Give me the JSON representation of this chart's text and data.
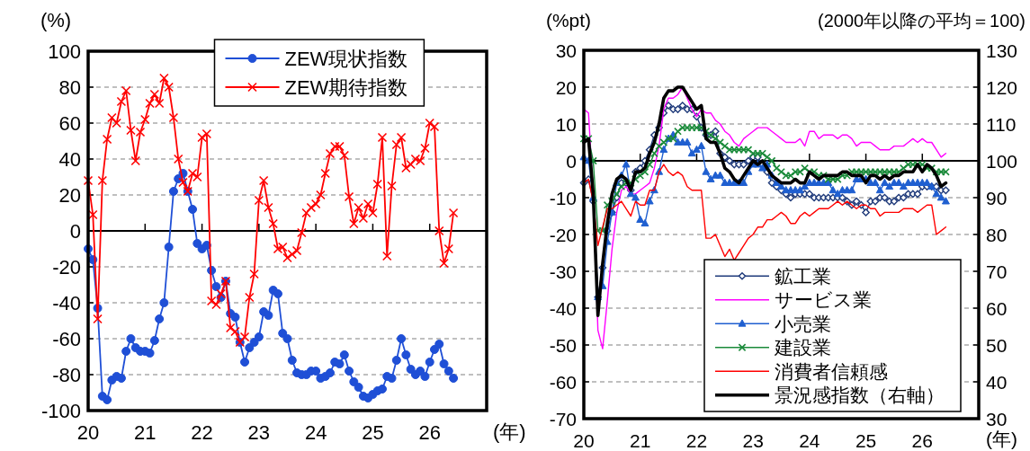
{
  "chart_data": [
    {
      "type": "line",
      "ylabel": "(%)",
      "xlabel": "(年)",
      "x": [
        "2020-01",
        "2020-02",
        "2020-03",
        "2020-04",
        "2020-05",
        "2020-06",
        "2020-07",
        "2020-08",
        "2020-09",
        "2020-10",
        "2020-11",
        "2020-12",
        "2021-01",
        "2021-02",
        "2021-03",
        "2021-04",
        "2021-05",
        "2021-06",
        "2021-07",
        "2021-08",
        "2021-09",
        "2021-10",
        "2021-11",
        "2021-12",
        "2022-01",
        "2022-02",
        "2022-03",
        "2022-04",
        "2022-05",
        "2022-06",
        "2022-07",
        "2022-08",
        "2022-09",
        "2022-10",
        "2022-11",
        "2022-12",
        "2023-01",
        "2023-02",
        "2023-03",
        "2023-04",
        "2023-05",
        "2023-06",
        "2023-07",
        "2023-08",
        "2023-09",
        "2023-10",
        "2023-11",
        "2023-12",
        "2024-01",
        "2024-02",
        "2024-03",
        "2024-04",
        "2024-05",
        "2024-06",
        "2024-07",
        "2024-08",
        "2024-09",
        "2024-10",
        "2024-11",
        "2024-12",
        "2025-01",
        "2025-02",
        "2025-03",
        "2025-04",
        "2025-05",
        "2025-06",
        "2025-07",
        "2025-08",
        "2025-09",
        "2025-10",
        "2025-11",
        "2025-12",
        "2026-01",
        "2026-02",
        "2026-03",
        "2026-04",
        "2026-05",
        "2026-06"
      ],
      "xlim": [
        "2020-01",
        "2027-01"
      ],
      "xticks": [
        {
          "value": "2020-01",
          "label": "20"
        },
        {
          "value": "2021-01",
          "label": "21"
        },
        {
          "value": "2022-01",
          "label": "22"
        },
        {
          "value": "2023-01",
          "label": "23"
        },
        {
          "value": "2024-01",
          "label": "24"
        },
        {
          "value": "2025-01",
          "label": "25"
        },
        {
          "value": "2026-01",
          "label": "26"
        }
      ],
      "ylim": [
        -100,
        100
      ],
      "yticks": [
        -100,
        -80,
        -60,
        -40,
        -20,
        0,
        20,
        40,
        60,
        80,
        100
      ],
      "grid": "y",
      "legend": "top",
      "ref_lines": [
        {
          "axis": "y",
          "value": 0,
          "color": "#000000"
        }
      ],
      "series": [
        {
          "name": "ZEW現状指数",
          "color": "#1f4fd6",
          "marker": "circle",
          "values": [
            -10,
            -16,
            -43,
            -92,
            -94,
            -83,
            -81,
            -82,
            -67,
            -60,
            -65,
            -67,
            -67,
            -68,
            -61,
            -49,
            -40,
            -9,
            22,
            29,
            32,
            22,
            12,
            -7,
            -10,
            -8,
            -22,
            -31,
            -37,
            -28,
            -46,
            -48,
            -62,
            -73,
            -65,
            -62,
            -59,
            -45,
            -47,
            -33,
            -35,
            -57,
            -60,
            -72,
            -79,
            -80,
            -80,
            -78,
            -78,
            -82,
            -81,
            -79,
            -73,
            -74,
            -69,
            -78,
            -84,
            -87,
            -92,
            -93,
            -91,
            -89,
            -88,
            -81,
            -82,
            -72,
            -60,
            -69,
            -77,
            -80,
            -78,
            -81,
            -73,
            -66,
            -63,
            -74,
            -78,
            -82
          ]
        },
        {
          "name": "ZEW期待指数",
          "color": "#ff0000",
          "marker": "cross",
          "values": [
            28,
            9,
            -49,
            28,
            51,
            63,
            60,
            72,
            78,
            56,
            39,
            55,
            62,
            71,
            76,
            71,
            85,
            80,
            63,
            40,
            27,
            22,
            32,
            30,
            52,
            54,
            -39,
            -41,
            -35,
            -28,
            -54,
            -56,
            -62,
            -59,
            -37,
            -24,
            17,
            28,
            13,
            4,
            -10,
            -9,
            -15,
            -13,
            -11,
            -1,
            10,
            13,
            15,
            20,
            32,
            43,
            47,
            47,
            42,
            19,
            4,
            13,
            7,
            15,
            10,
            26,
            52,
            -14,
            25,
            48,
            52,
            35,
            37,
            40,
            39,
            46,
            60,
            58,
            0,
            -18,
            -10,
            10
          ]
        }
      ]
    },
    {
      "type": "line",
      "ylabel": "(%pt)",
      "y2label": "(2000年以降の平均＝100)",
      "xlabel": "(年)",
      "x": [
        "2020-01",
        "2020-02",
        "2020-03",
        "2020-04",
        "2020-05",
        "2020-06",
        "2020-07",
        "2020-08",
        "2020-09",
        "2020-10",
        "2020-11",
        "2020-12",
        "2021-01",
        "2021-02",
        "2021-03",
        "2021-04",
        "2021-05",
        "2021-06",
        "2021-07",
        "2021-08",
        "2021-09",
        "2021-10",
        "2021-11",
        "2021-12",
        "2022-01",
        "2022-02",
        "2022-03",
        "2022-04",
        "2022-05",
        "2022-06",
        "2022-07",
        "2022-08",
        "2022-09",
        "2022-10",
        "2022-11",
        "2022-12",
        "2023-01",
        "2023-02",
        "2023-03",
        "2023-04",
        "2023-05",
        "2023-06",
        "2023-07",
        "2023-08",
        "2023-09",
        "2023-10",
        "2023-11",
        "2023-12",
        "2024-01",
        "2024-02",
        "2024-03",
        "2024-04",
        "2024-05",
        "2024-06",
        "2024-07",
        "2024-08",
        "2024-09",
        "2024-10",
        "2024-11",
        "2024-12",
        "2025-01",
        "2025-02",
        "2025-03",
        "2025-04",
        "2025-05",
        "2025-06",
        "2025-07",
        "2025-08",
        "2025-09",
        "2025-10",
        "2025-11",
        "2025-12",
        "2026-01",
        "2026-02",
        "2026-03",
        "2026-04",
        "2026-05",
        "2026-06"
      ],
      "xlim": [
        "2020-01",
        "2027-01"
      ],
      "xticks": [
        {
          "value": "2020-01",
          "label": "20"
        },
        {
          "value": "2021-01",
          "label": "21"
        },
        {
          "value": "2022-01",
          "label": "22"
        },
        {
          "value": "2023-01",
          "label": "23"
        },
        {
          "value": "2024-01",
          "label": "24"
        },
        {
          "value": "2025-01",
          "label": "25"
        },
        {
          "value": "2026-01",
          "label": "26"
        }
      ],
      "ylim": [
        -70,
        30
      ],
      "yticks": [
        -70,
        -60,
        -50,
        -40,
        -30,
        -20,
        -10,
        0,
        10,
        20,
        30
      ],
      "y2lim": [
        30,
        130
      ],
      "y2ticks": [
        30,
        40,
        50,
        60,
        70,
        80,
        90,
        100,
        110,
        120,
        130
      ],
      "grid": "y",
      "legend": "bottom right",
      "ref_lines": [
        {
          "axis": "y",
          "value": 0,
          "color": "#000000"
        }
      ],
      "series": [
        {
          "name": "鉱工業",
          "color": "#1f3a7a",
          "marker": "diamond",
          "values": [
            -6,
            -5,
            -11,
            -37,
            -29,
            -19,
            -14,
            -10,
            -6,
            -6,
            -8,
            -3,
            -2,
            0,
            3,
            7,
            9,
            13,
            15,
            14,
            14,
            15,
            14,
            14,
            12,
            9,
            7,
            7,
            8,
            2,
            1,
            0,
            -1,
            -1,
            -1,
            0,
            1,
            1,
            -1,
            -3,
            -6,
            -7,
            -8,
            -9,
            -10,
            -9,
            -9,
            -9,
            -9,
            -10,
            -10,
            -10,
            -10,
            -10,
            -10,
            -10,
            -11,
            -12,
            -11,
            -12,
            -14,
            -11,
            -11,
            -10,
            -10,
            -11,
            -11,
            -10,
            -10,
            -9,
            -9,
            -9,
            -7,
            -7,
            -7,
            -7,
            -8,
            -8
          ]
        },
        {
          "name": "サービス業",
          "color": "#ff00ff",
          "marker": "none",
          "values": [
            14,
            13,
            -9,
            -46,
            -51,
            -38,
            -24,
            -14,
            -8,
            -7,
            -9,
            -9,
            -8,
            -7,
            -6,
            -2,
            4,
            14,
            17,
            17,
            18,
            20,
            17,
            14,
            12,
            14,
            13,
            13,
            11,
            10,
            8,
            7,
            5,
            4,
            6,
            7,
            8,
            9,
            9,
            9,
            8,
            7,
            6,
            5,
            5,
            5,
            6,
            4,
            8,
            8,
            6,
            7,
            7,
            7,
            6,
            7,
            7,
            6,
            4,
            5,
            5,
            5,
            4,
            3,
            3,
            3,
            4,
            4,
            4,
            5,
            6,
            5,
            6,
            5,
            5,
            3,
            1,
            2
          ]
        },
        {
          "name": "小売業",
          "color": "#1f5fd0",
          "marker": "triangle",
          "values": [
            1,
            0,
            -10,
            -37,
            -34,
            -22,
            -14,
            -6,
            -4,
            -1,
            -9,
            -10,
            -16,
            -17,
            -11,
            -8,
            -3,
            3,
            6,
            7,
            5,
            5,
            5,
            2,
            3,
            4,
            -3,
            -5,
            -4,
            -4,
            -6,
            -6,
            -6,
            -6,
            -6,
            -3,
            -1,
            -1,
            -2,
            -1,
            -4,
            -6,
            -7,
            -8,
            -8,
            -8,
            -8,
            -7,
            -6,
            -6,
            -6,
            -6,
            -6,
            -8,
            -9,
            -8,
            -8,
            -8,
            -5,
            -5,
            -5,
            -6,
            -6,
            -8,
            -6,
            -7,
            -6,
            -6,
            -7,
            -6,
            -6,
            -6,
            -6,
            -6,
            -7,
            -9,
            -10,
            -11
          ]
        },
        {
          "name": "建設業",
          "color": "#1a8a3a",
          "marker": "cross",
          "values": [
            6,
            6,
            0,
            -19,
            -19,
            -12,
            -11,
            -9,
            -7,
            -6,
            -6,
            -5,
            -4,
            -3,
            -1,
            2,
            4,
            5,
            6,
            6,
            8,
            9,
            9,
            9,
            9,
            9,
            8,
            7,
            6,
            5,
            4,
            3,
            3,
            3,
            3,
            3,
            2,
            2,
            2,
            1,
            0,
            -2,
            -3,
            -4,
            -4,
            -3,
            -3,
            -2,
            -3,
            -3,
            -4,
            -4,
            -5,
            -5,
            -5,
            -4,
            -4,
            -3,
            -3,
            -3,
            -3,
            -3,
            -3,
            -3,
            -3,
            -3,
            -3,
            -3,
            -2,
            -1,
            -1,
            -1,
            -1,
            -2,
            -2,
            -3,
            -3,
            -3
          ]
        },
        {
          "name": "消費者信頼感",
          "color": "#ff0000",
          "marker": "none",
          "values": [
            -6,
            -5,
            -11,
            -23,
            -18,
            -13,
            -13,
            -12,
            -11,
            -13,
            -15,
            -11,
            -12,
            -12,
            -8,
            -8,
            -3,
            -1,
            -3,
            -4,
            -3,
            -4,
            -7,
            -8,
            -8,
            -8,
            -21,
            -21,
            -20,
            -23,
            -26,
            -24,
            -27,
            -25,
            -23,
            -21,
            -20,
            -18,
            -18,
            -16,
            -16,
            -15,
            -14,
            -15,
            -17,
            -17,
            -15,
            -14,
            -15,
            -14,
            -13,
            -13,
            -13,
            -12,
            -11,
            -12,
            -11,
            -12,
            -13,
            -12,
            -12,
            -13,
            -13,
            -15,
            -14,
            -14,
            -14,
            -14,
            -13,
            -13,
            -13,
            -14,
            -13,
            -12,
            -12,
            -20,
            -19,
            -18
          ]
        },
        {
          "name": "景況感指数（右軸）",
          "color": "#000000",
          "marker": "none",
          "axis": "y2",
          "values": [
            105,
            106,
            91,
            58,
            72,
            83,
            91,
            95,
            96,
            95,
            92,
            97,
            97,
            98,
            102,
            105,
            110,
            117,
            119,
            119,
            120,
            120,
            118,
            116,
            114,
            115,
            106,
            105,
            105,
            102,
            98,
            97,
            95,
            94,
            96,
            98,
            100,
            99,
            100,
            98,
            96,
            95,
            94,
            94,
            94,
            95,
            94,
            94,
            97,
            96,
            95,
            96,
            96,
            96,
            96,
            97,
            97,
            96,
            96,
            96,
            94,
            96,
            96,
            95,
            96,
            95,
            96,
            96,
            97,
            97,
            97,
            99,
            97,
            99,
            98,
            96,
            93,
            94
          ]
        }
      ]
    }
  ]
}
